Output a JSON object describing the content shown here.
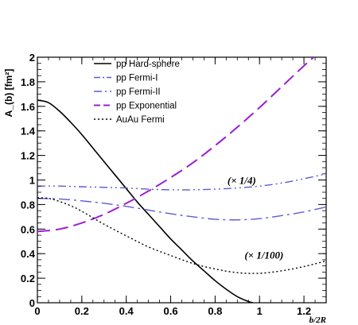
{
  "chart_data": {
    "type": "line",
    "title": "",
    "xlabel": "b/2R",
    "ylabel": "A_(b) [fm²]",
    "xlim": [
      0,
      1.3
    ],
    "ylim": [
      0,
      2
    ],
    "x_ticks": [
      "0",
      "0.2",
      "0.4",
      "0.6",
      "0.8",
      "1",
      "1.2"
    ],
    "y_ticks": [
      "0",
      "0.2",
      "0.4",
      "0.6",
      "0.8",
      "1",
      "1.2",
      "1.4",
      "1.6",
      "1.8",
      "2"
    ],
    "grid": false,
    "legend_position": "top-center",
    "series": [
      {
        "name": "pp Hard-sphere",
        "color": "#000000",
        "style": "solid",
        "x": [
          0,
          0.05,
          0.1,
          0.15,
          0.2,
          0.25,
          0.3,
          0.35,
          0.4,
          0.45,
          0.5,
          0.55,
          0.6,
          0.65,
          0.7,
          0.75,
          0.8,
          0.85,
          0.9,
          0.95,
          0.97
        ],
        "y": [
          1.65,
          1.63,
          1.56,
          1.47,
          1.37,
          1.26,
          1.15,
          1.04,
          0.93,
          0.82,
          0.72,
          0.62,
          0.52,
          0.43,
          0.34,
          0.26,
          0.18,
          0.11,
          0.05,
          0.01,
          0.0
        ]
      },
      {
        "name": "pp Fermi-I",
        "color": "#5b5bd6",
        "style": "dash-dot",
        "x": [
          0,
          0.1,
          0.2,
          0.3,
          0.4,
          0.5,
          0.6,
          0.7,
          0.8,
          0.9,
          1.0,
          1.1,
          1.2,
          1.3
        ],
        "y": [
          0.85,
          0.845,
          0.83,
          0.81,
          0.785,
          0.755,
          0.725,
          0.7,
          0.68,
          0.675,
          0.685,
          0.71,
          0.74,
          0.78
        ]
      },
      {
        "name": "pp Fermi-II",
        "color": "#5b5bd6",
        "style": "dash-dot-dot",
        "x": [
          0,
          0.1,
          0.2,
          0.3,
          0.4,
          0.5,
          0.6,
          0.7,
          0.8,
          0.9,
          1.0,
          1.1,
          1.2,
          1.3
        ],
        "y": [
          0.95,
          0.95,
          0.945,
          0.94,
          0.935,
          0.925,
          0.92,
          0.92,
          0.925,
          0.935,
          0.95,
          0.975,
          1.01,
          1.05
        ]
      },
      {
        "name": "pp Exponential",
        "color": "#9b1ed6",
        "style": "long-dash",
        "x": [
          0,
          0.1,
          0.2,
          0.3,
          0.4,
          0.5,
          0.6,
          0.7,
          0.8,
          0.9,
          1.0,
          1.1,
          1.2,
          1.25
        ],
        "y": [
          0.58,
          0.6,
          0.65,
          0.72,
          0.81,
          0.91,
          1.02,
          1.14,
          1.28,
          1.43,
          1.59,
          1.76,
          1.93,
          2.01
        ]
      },
      {
        "name": "AuAu Fermi",
        "color": "#000000",
        "style": "dotted",
        "x": [
          0,
          0.05,
          0.1,
          0.15,
          0.2,
          0.3,
          0.4,
          0.5,
          0.6,
          0.7,
          0.8,
          0.9,
          1.0,
          1.1,
          1.2,
          1.3
        ],
        "y": [
          0.855,
          0.85,
          0.825,
          0.79,
          0.745,
          0.64,
          0.545,
          0.455,
          0.385,
          0.32,
          0.275,
          0.245,
          0.24,
          0.26,
          0.295,
          0.34
        ]
      }
    ],
    "annotations": [
      {
        "text": "(× 1/4)",
        "x": 0.92,
        "y": 1.0
      },
      {
        "text": "(× 1/100)",
        "x": 1.02,
        "y": 0.39
      }
    ]
  }
}
